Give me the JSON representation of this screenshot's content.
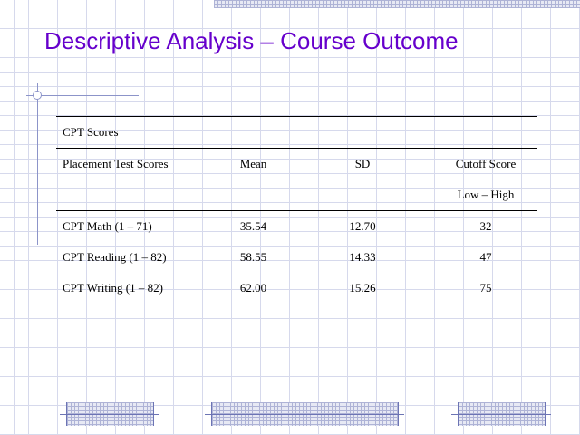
{
  "slide": {
    "title": "Descriptive Analysis – Course Outcome"
  },
  "table": {
    "section_label": "CPT Scores",
    "headers": {
      "col1": "Placement Test Scores",
      "col2": "Mean",
      "col3": "SD",
      "col4": "Cutoff Score",
      "col4_sub": "Low – High"
    },
    "rows": [
      {
        "label": "CPT Math (1 – 71)",
        "mean": "35.54",
        "sd": "12.70",
        "cutoff": "32"
      },
      {
        "label": "CPT Reading (1 – 82)",
        "mean": "58.55",
        "sd": "14.33",
        "cutoff": "47"
      },
      {
        "label": "CPT Writing (1 – 82)",
        "mean": "62.00",
        "sd": "15.26",
        "cutoff": "75"
      }
    ]
  },
  "colors": {
    "title": "#6600cc",
    "grid": "#d6d9ec",
    "decoration": "#8c94c9"
  }
}
